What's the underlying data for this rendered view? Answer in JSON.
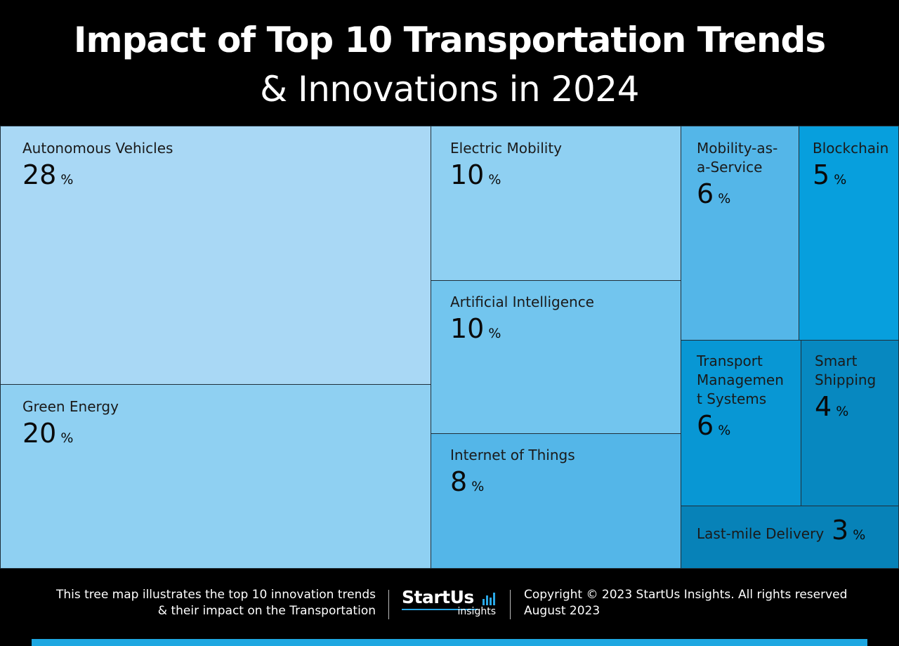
{
  "header": {
    "title_line1": "Impact of Top 10 Transportation Trends",
    "title_line2": "& Innovations in 2024"
  },
  "chart_data": {
    "type": "treemap",
    "unit": "%",
    "items": [
      {
        "name": "Autonomous Vehicles",
        "value": 28,
        "color": "#a9d8f5"
      },
      {
        "name": "Green Energy",
        "value": 20,
        "color": "#8fd0f2"
      },
      {
        "name": "Electric Mobility",
        "value": 10,
        "color": "#8fd0f2"
      },
      {
        "name": "Artificial Intelligence",
        "value": 10,
        "color": "#72c5ee"
      },
      {
        "name": "Internet of Things",
        "value": 8,
        "color": "#54b6e8"
      },
      {
        "name": "Mobility-as-a-Service",
        "value": 6,
        "color": "#54b6e8"
      },
      {
        "name": "Blockchain",
        "value": 5,
        "color": "#079fdd"
      },
      {
        "name": "Transport Management Systems",
        "value": 6,
        "color": "#0897d4"
      },
      {
        "name": "Smart Shipping",
        "value": 4,
        "color": "#0788c0"
      },
      {
        "name": "Last-mile Delivery",
        "value": 3,
        "color": "#0782b8"
      }
    ]
  },
  "footer": {
    "description_line1": "This tree map illustrates the top 10 innovation trends",
    "description_line2": "& their impact on the Transportation",
    "logo_main": "StartUs",
    "logo_sub": "insights",
    "copyright": "Copyright © 2023 StartUs Insights. All rights reserved",
    "date": "August 2023"
  },
  "colors": {
    "background": "#000000",
    "accent": "#1ea7e1"
  }
}
